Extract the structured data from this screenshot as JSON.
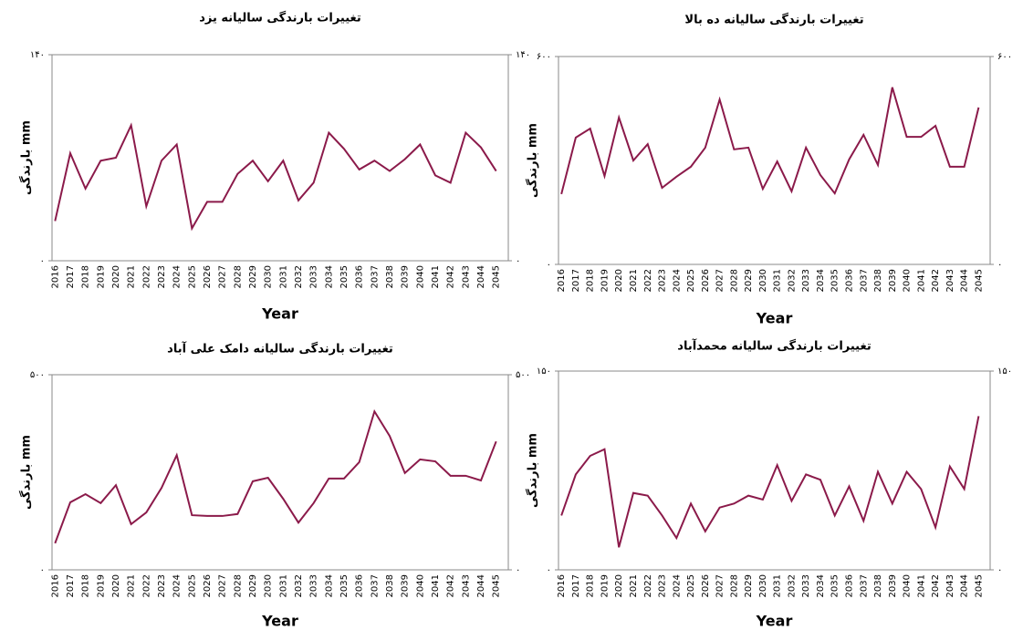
{
  "chart_data": [
    {
      "type": "line",
      "title": "تغییرات بارندگی سالیانه یزد",
      "x_label": "Year",
      "y_label": "بارندگی mm",
      "categories": [
        "2016",
        "2017",
        "2018",
        "2019",
        "2020",
        "2021",
        "2022",
        "2023",
        "2024",
        "2025",
        "2026",
        "2027",
        "2028",
        "2029",
        "2030",
        "2031",
        "2032",
        "2033",
        "2034",
        "2035",
        "2036",
        "2037",
        "2038",
        "2039",
        "2040",
        "2041",
        "2042",
        "2043",
        "2044",
        "2045"
      ],
      "series": [
        {
          "color": "#8b1a4a",
          "values": [
            27,
            73,
            49,
            68,
            70,
            92,
            37,
            68,
            79,
            22,
            40,
            40,
            59,
            68,
            54,
            68,
            41,
            53,
            87,
            76,
            62,
            68,
            61,
            69,
            79,
            58,
            53,
            87,
            77,
            61
          ]
        }
      ],
      "ylim": [
        0,
        140
      ],
      "yticks": [
        {
          "value": 0,
          "label": "۰"
        },
        {
          "value": 140,
          "label": "۱۴۰"
        }
      ]
    },
    {
      "type": "line",
      "title": "تغییرات بارندگی سالیانه ده بالا",
      "x_label": "Year",
      "y_label": "بارندگی mm",
      "categories": [
        "2016",
        "2017",
        "2018",
        "2019",
        "2020",
        "2021",
        "2022",
        "2023",
        "2024",
        "2025",
        "2026",
        "2027",
        "2028",
        "2029",
        "2030",
        "2031",
        "2032",
        "2033",
        "2034",
        "2035",
        "2036",
        "2037",
        "2038",
        "2039",
        "2040",
        "2041",
        "2042",
        "2043",
        "2044",
        "2045"
      ],
      "series": [
        {
          "color": "#8b1a4a",
          "values": [
            203,
            366,
            392,
            255,
            424,
            300,
            347,
            221,
            253,
            282,
            337,
            476,
            332,
            337,
            218,
            297,
            211,
            337,
            258,
            205,
            303,
            374,
            287,
            511,
            368,
            368,
            400,
            282,
            282,
            453
          ]
        }
      ],
      "ylim": [
        0,
        600
      ],
      "yticks": [
        {
          "value": 0,
          "label": "۰"
        },
        {
          "value": 600,
          "label": "۶۰۰"
        }
      ]
    },
    {
      "type": "line",
      "title": "تغییرات بارندگی سالیانه دامک علی آباد",
      "x_label": "Year",
      "y_label": "بارندگی mm",
      "categories": [
        "2016",
        "2017",
        "2018",
        "2019",
        "2020",
        "2021",
        "2022",
        "2023",
        "2024",
        "2025",
        "2026",
        "2027",
        "2028",
        "2029",
        "2030",
        "2031",
        "2032",
        "2033",
        "2034",
        "2035",
        "2036",
        "2037",
        "2038",
        "2039",
        "2040",
        "2041",
        "2042",
        "2043",
        "2044",
        "2045"
      ],
      "series": [
        {
          "color": "#8b1a4a",
          "values": [
            68,
            173,
            194,
            171,
            217,
            117,
            147,
            210,
            294,
            140,
            138,
            138,
            143,
            227,
            236,
            182,
            121,
            171,
            234,
            234,
            276,
            406,
            343,
            248,
            283,
            278,
            241,
            241,
            229,
            329
          ]
        }
      ],
      "ylim": [
        0,
        500
      ],
      "yticks": [
        {
          "value": 0,
          "label": "۰"
        },
        {
          "value": 500,
          "label": "۵۰۰"
        }
      ]
    },
    {
      "type": "line",
      "title": "تغییرات بارندگی سالیانه محمدآباد",
      "x_label": "Year",
      "y_label": "بارندگی mm",
      "categories": [
        "2016",
        "2017",
        "2018",
        "2019",
        "2020",
        "2021",
        "2022",
        "2023",
        "2024",
        "2025",
        "2026",
        "2027",
        "2028",
        "2029",
        "2030",
        "2031",
        "2032",
        "2033",
        "2034",
        "2035",
        "2036",
        "2037",
        "2038",
        "2039",
        "2040",
        "2041",
        "2042",
        "2043",
        "2044",
        "2045"
      ],
      "series": [
        {
          "color": "#8b1a4a",
          "values": [
            41,
            72,
            86,
            91,
            17,
            58,
            56,
            41,
            24,
            50,
            29,
            47,
            50,
            56,
            53,
            79,
            52,
            72,
            68,
            41,
            63,
            37,
            74,
            50,
            74,
            61,
            32,
            78,
            61,
            116
          ]
        }
      ],
      "ylim": [
        0,
        150
      ],
      "yticks": [
        {
          "value": 0,
          "label": "۰"
        },
        {
          "value": 150,
          "label": "۱۵۰"
        }
      ]
    }
  ]
}
